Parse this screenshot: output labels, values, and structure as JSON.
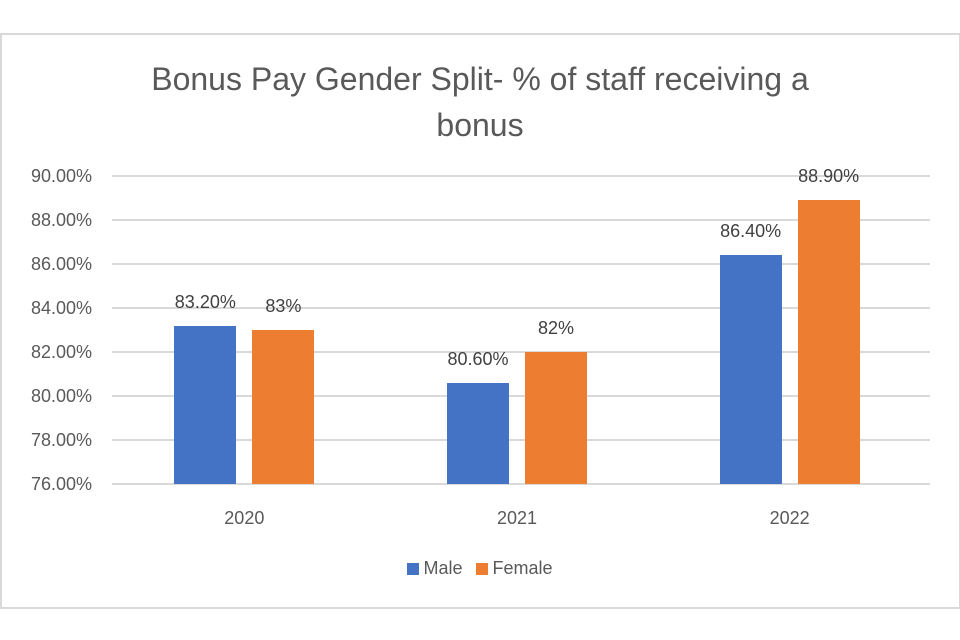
{
  "chart_data": {
    "type": "bar",
    "title": "Bonus Pay Gender Split- % of staff receiving a bonus",
    "title_lines": [
      "Bonus Pay Gender Split- % of staff receiving a",
      "bonus"
    ],
    "categories": [
      "2020",
      "2021",
      "2022"
    ],
    "series": [
      {
        "name": "Male",
        "color": "#4472c4",
        "values": [
          83.2,
          80.6,
          86.4
        ],
        "labels": [
          "83.20%",
          "80.60%",
          "86.40%"
        ]
      },
      {
        "name": "Female",
        "color": "#ed7d31",
        "values": [
          83.0,
          82.0,
          88.9
        ],
        "labels": [
          "83%",
          "82%",
          "88.90%"
        ]
      }
    ],
    "xlabel": "",
    "ylabel": "",
    "ylim": [
      76,
      90
    ],
    "yticks": [
      "90.00%",
      "88.00%",
      "86.00%",
      "84.00%",
      "82.00%",
      "80.00%",
      "78.00%",
      "76.00%"
    ],
    "grid": true,
    "legend_position": "bottom"
  }
}
